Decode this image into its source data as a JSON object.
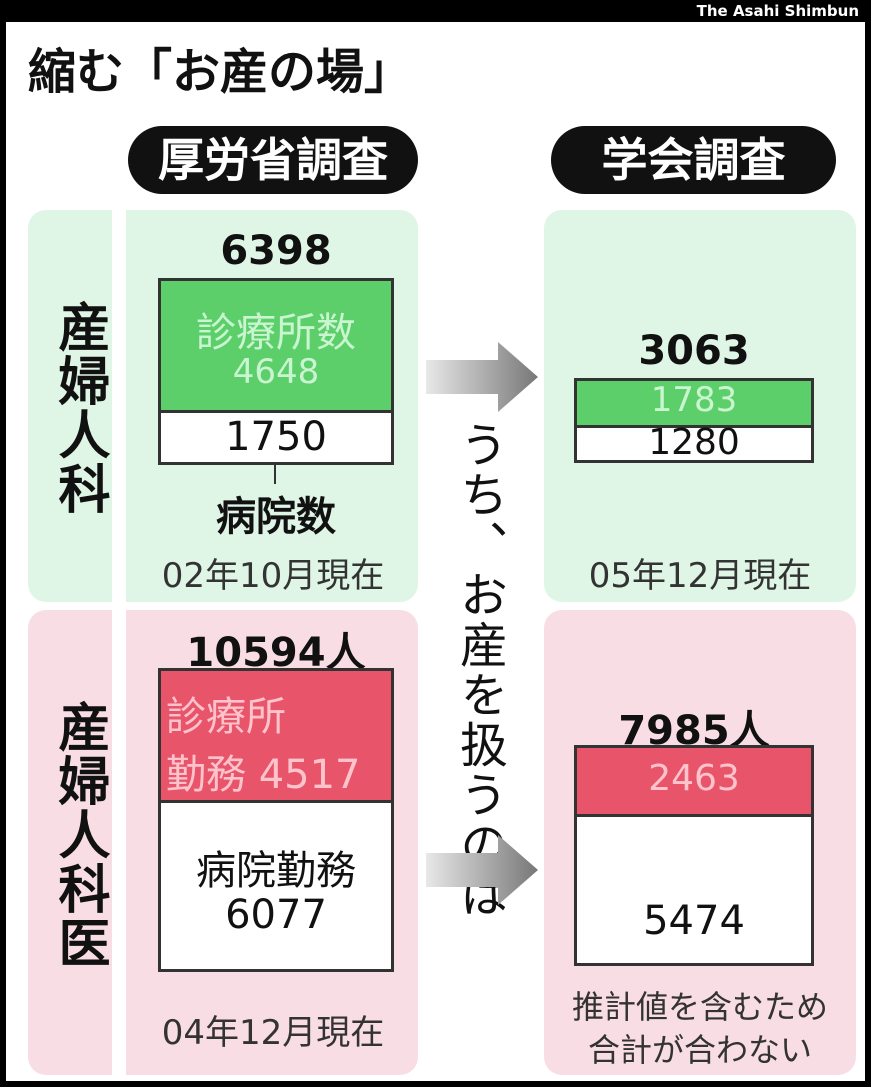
{
  "credit": "The Asahi Shimbun",
  "title": "縮む「お産の場」",
  "headers": {
    "left": "厚労省調査",
    "right": "学会調査"
  },
  "row_labels": {
    "facilities": "産婦人科",
    "doctors": "産婦人科医"
  },
  "middle_note": "うち、お産を扱うのは",
  "facilities": {
    "left": {
      "total": "6398",
      "clinic_label": "診療所数",
      "clinic": "4648",
      "hospital": "1750",
      "hospital_label": "病院数",
      "date": "02年10月現在"
    },
    "right": {
      "total": "3063",
      "clinic": "1783",
      "hospital": "1280",
      "date": "05年12月現在"
    }
  },
  "doctors": {
    "left": {
      "total": "10594人",
      "clinic_label": [
        "診療所",
        "勤務 4517"
      ],
      "hospital_label": "病院勤務",
      "hospital": "6077",
      "date": "04年12月現在"
    },
    "right": {
      "total": "7985人",
      "clinic": "2463",
      "hospital": "5474",
      "note": [
        "推計値を含むため",
        "合計が合わない"
      ]
    }
  }
}
